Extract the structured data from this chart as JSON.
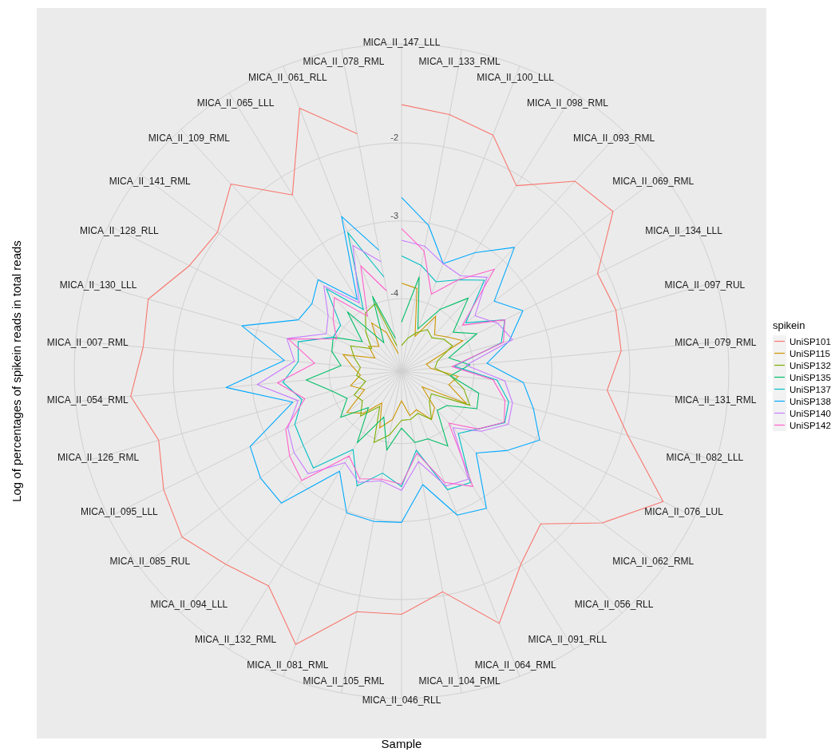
{
  "chart_data": {
    "type": "radar",
    "xlabel": "Sample",
    "ylabel": "Log of percentages of spikein reads in total reads",
    "legend_title": "spikein",
    "legend": "right",
    "grid": true,
    "ylim": [
      -4.93,
      -0.73
    ],
    "yticks": [
      -4,
      -3,
      -2
    ],
    "categories": [
      "MICA_II_147_LLL",
      "MICA_II_133_RML",
      "MICA_II_100_LLL",
      "MICA_II_098_RML",
      "MICA_II_093_RML",
      "MICA_II_069_RML",
      "MICA_II_134_LLL",
      "MICA_II_097_RUL",
      "MICA_II_079_RML",
      "MICA_II_131_RML",
      "MICA_II_082_LLL",
      "MICA_II_076_LUL",
      "MICA_II_062_RML",
      "MICA_II_056_RLL",
      "MICA_II_091_RLL",
      "MICA_II_064_RML",
      "MICA_II_104_RML",
      "MICA_II_046_RLL",
      "MICA_II_105_RML",
      "MICA_II_081_RML",
      "MICA_II_132_RML",
      "MICA_II_094_LLL",
      "MICA_II_085_RUL",
      "MICA_II_095_LLL",
      "MICA_II_126_RML",
      "MICA_II_054_RML",
      "MICA_II_007_RML",
      "MICA_II_130_LLL",
      "MICA_II_128_RLL",
      "MICA_II_141_RML",
      "MICA_II_109_RML",
      "MICA_II_065_LLL",
      "MICA_II_061_RLL",
      "MICA_II_078_RML"
    ],
    "series": [
      {
        "name": "UniSP101",
        "color": "#f8766d",
        "values": [
          -1.51,
          -1.58,
          -1.68,
          -2.13,
          -1.63,
          -1.53,
          -2.12,
          -2.07,
          -2.1,
          -2.28,
          -1.91,
          -1.18,
          -1.7,
          -2.28,
          -2.02,
          -1.46,
          -2.05,
          -1.81,
          -1.79,
          -1.17,
          -1.69,
          -1.58,
          -1.4,
          -1.52,
          -1.69,
          -1.44,
          -1.6,
          -1.55,
          -1.89,
          -1.97,
          -1.68,
          -2.27,
          -1.31,
          -1.83
        ]
      },
      {
        "name": "UniSP115",
        "color": "#cd9600",
        "values": [
          -3.8,
          -3.85,
          -4.45,
          -4.1,
          -4.3,
          -4.2,
          -4.05,
          -4.6,
          -4.55,
          -4.2,
          -4.3,
          -4.0,
          -4.6,
          -4.3,
          -4.2,
          -4.4,
          -4.35,
          -4.55,
          -4.3,
          -4.15,
          -4.45,
          -4.2,
          -4.05,
          -4.4,
          -4.25,
          -4.4,
          -4.3,
          -4.15,
          -4.55,
          -4.4,
          -4.5,
          -4.2,
          -4.4,
          -4.7
        ]
      },
      {
        "name": "UniSP132",
        "color": "#7cae00",
        "values": [
          -4.6,
          -4.5,
          -4.4,
          -4.3,
          -4.35,
          -4.25,
          -4.2,
          -4.45,
          -4.5,
          -4.3,
          -4.1,
          -3.95,
          -4.45,
          -4.4,
          -4.2,
          -4.35,
          -4.3,
          -4.3,
          -4.1,
          -3.95,
          -4.4,
          -4.15,
          -4.3,
          -4.25,
          -4.45,
          -4.35,
          -4.4,
          -4.3,
          -4.2,
          -4.45,
          -4.25,
          -4.05,
          -4.0,
          -4.6
        ]
      },
      {
        "name": "UniSP135",
        "color": "#00be67",
        "values": [
          -4.3,
          -3.7,
          -4.35,
          -4.0,
          -3.66,
          -4.1,
          -3.85,
          -4.3,
          -4.05,
          -4.3,
          -3.9,
          -3.85,
          -4.2,
          -4.25,
          -3.8,
          -4.0,
          -4.0,
          -4.2,
          -3.9,
          -4.3,
          -3.85,
          -4.3,
          -3.95,
          -4.15,
          -4.0,
          -3.7,
          -4.15,
          -4.0,
          -3.95,
          -4.3,
          -3.9,
          -4.5,
          -3.9,
          -4.5
        ]
      },
      {
        "name": "UniSP137",
        "color": "#00bfc4",
        "values": [
          -3.45,
          -3.55,
          -3.7,
          -3.55,
          -3.35,
          -3.9,
          -3.45,
          -3.6,
          -4.25,
          -3.7,
          -3.5,
          -3.45,
          -3.7,
          -3.85,
          -3.25,
          -3.3,
          -3.9,
          -3.45,
          -3.6,
          -3.35,
          -3.75,
          -3.25,
          -3.35,
          -3.4,
          -3.6,
          -3.4,
          -3.6,
          -3.55,
          -3.95,
          -3.95,
          -3.5,
          -4.0,
          -3.02,
          -3.7
        ]
      },
      {
        "name": "UniSP138",
        "color": "#00a9ff",
        "values": [
          -2.7,
          -3.03,
          -3.45,
          -3.14,
          -2.78,
          -3.44,
          -3.19,
          -3.49,
          -3.83,
          -3.36,
          -3.17,
          -2.95,
          -3.24,
          -3.51,
          -2.86,
          -2.95,
          -3.45,
          -2.99,
          -2.97,
          -2.98,
          -3.42,
          -2.64,
          -2.66,
          -2.76,
          -3.48,
          -2.67,
          -3.42,
          -2.8,
          -3.45,
          -3.49,
          -3.34,
          -3.85,
          -2.8,
          -3.35
        ]
      },
      {
        "name": "UniSP140",
        "color": "#c77cff",
        "values": [
          -3.25,
          -3.3,
          -3.45,
          -3.49,
          -3.3,
          -3.75,
          -3.55,
          -3.45,
          -4.1,
          -3.6,
          -3.45,
          -3.4,
          -3.65,
          -3.95,
          -3.3,
          -3.35,
          -3.75,
          -3.4,
          -3.5,
          -3.4,
          -3.55,
          -3.15,
          -3.2,
          -3.3,
          -3.55,
          -3.07,
          -3.55,
          -3.4,
          -3.85,
          -3.75,
          -3.45,
          -3.9,
          -3.2,
          -3.5
        ]
      },
      {
        "name": "UniSP142",
        "color": "#ff61cc",
        "values": [
          -3.1,
          -3.36,
          -3.87,
          -3.55,
          -3.16,
          -3.95,
          -3.45,
          -3.57,
          -4.28,
          -3.75,
          -3.55,
          -3.46,
          -3.7,
          -4.03,
          -3.19,
          -3.4,
          -3.86,
          -3.48,
          -3.52,
          -3.45,
          -3.65,
          -3.03,
          -3.13,
          -3.27,
          -3.64,
          -3.33,
          -3.81,
          -3.42,
          -4.0,
          -3.83,
          -3.65,
          -4.1,
          -3.48,
          -3.88
        ]
      }
    ]
  }
}
